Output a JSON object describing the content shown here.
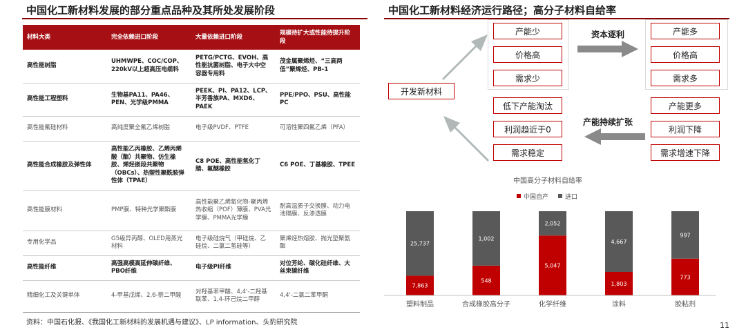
{
  "left_title": "中国化工新材料发展的部分重点品种及其所处发展阶段",
  "right_title": "中国化工新材料经济运行路径；高分子材料自给率",
  "table": {
    "headers": [
      "材料大类",
      "完全依赖进口阶段",
      "大量依赖进口阶段",
      "规模待扩大或性能待提升阶段"
    ],
    "rows": [
      [
        "高性能树脂",
        "UHMWPE、COC/COP、220kV以上超高压电缆料",
        "PETG/PCTG、EVOH、高性能抗菌树脂、电子大中空容器专用料",
        "茂金属聚烯烃、“三高两低”聚烯烃、PB-1"
      ],
      [
        "高性能工程塑料",
        "生物基PA11、PA46、PEN、光学级PMMA",
        "PEEK、PI、PA12、LCP、半芳香族PA、MXD6、PAEK",
        "PPE/PPO、PSU、高性能PC"
      ],
      [
        "高性能氟硅材料",
        "高纯度聚全氟乙烯树脂",
        "电子级PVDF、PTFE",
        "可溶性聚四氟乙烯（PFA）"
      ],
      [
        "高性能合成橡胶及弹性体",
        "高性能乙丙橡胶、乙烯丙烯酸（酯）共聚物、仿生橡胶、烯烃嵌段共聚物（OBCs）、热塑性聚酰胺弹性体（TPAE）",
        "C8 POE、高性能氢化丁腈、氟醚橡胶",
        "C6 POE、丁基橡胶、TPEE"
      ],
      [
        "高性能膜材料",
        "PMP膜、特种光学聚酯膜",
        "高性能聚乙烯氧化物-聚丙烯热收缩（POF）薄膜、PVA光学膜、PMMA光学膜",
        "耐高温质子交换膜、动力电池隔膜、反渗透膜"
      ],
      [
        "专用化学品",
        "G5级异丙醇、OLED用蒸光材料",
        "电子级硅烷气（甲硅烷、乙硅烷、二氯二氢硅等）",
        "聚烯烃热熔胶、抛光垫聚氨酯"
      ],
      [
        "高性能纤维",
        "高强高模高延伸碳纤维、PBO纤维",
        "电子级PI纤维",
        "对位芳纶、碳化硅纤维、大丝束碳纤维"
      ],
      [
        "精细化工及关键单体",
        "4-甲基戊烯、2,6-萘二甲酸",
        "对羟基苯甲酸、4,4'-二羟基联苯、1,4-环己烷二甲醇",
        "4,4'-二氯二苯甲酮"
      ]
    ]
  },
  "source": "资料：中国石化报、《我国化工新材料的发展机遇与建议》、LP information、头豹研究院",
  "flow": {
    "left_group": [
      "产能少",
      "价格高",
      "需求少"
    ],
    "right_group": [
      "产能多",
      "价格高",
      "需求多"
    ],
    "bottom_left": [
      "低下产能淘汰",
      "利润趋近于0",
      "需求稳定"
    ],
    "bottom_right": [
      "产能更多",
      "利润下降",
      "需求增速下降"
    ],
    "start_box": "开发新材料",
    "top_arrow_label": "资本逐利",
    "bottom_arrow_label": "产能持续扩张",
    "accent": "#c00000"
  },
  "chart_data": {
    "type": "bar",
    "stacked": true,
    "title": "中国高分子材料自给率",
    "categories": [
      "塑料制品",
      "合成橡胶高分子",
      "化学纤维",
      "涂料",
      "胶粘剂"
    ],
    "series": [
      {
        "name": "中国自产",
        "color": "#c00000",
        "values": [
          7863,
          548,
          5047,
          1803,
          773
        ]
      },
      {
        "name": "进口",
        "color": "#595959",
        "values": [
          25737,
          1002,
          2052,
          4667,
          997
        ]
      }
    ],
    "normalized": true,
    "legend_position": "top"
  },
  "page_number": "11"
}
